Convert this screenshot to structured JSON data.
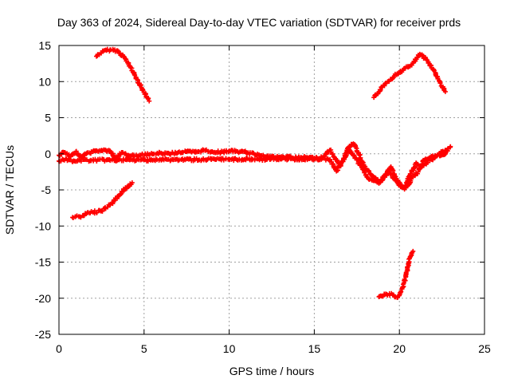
{
  "chart_data": {
    "type": "scatter",
    "title": "Day 363 of 2024, Sidereal Day-to-day VTEC variation (SDTVAR) for receiver prds",
    "xlabel": "GPS time / hours",
    "ylabel": "SDTVAR / TECUs",
    "xlim": [
      0,
      25
    ],
    "ylim": [
      -25,
      15
    ],
    "xticks": [
      0,
      5,
      10,
      15,
      20,
      25
    ],
    "yticks": [
      -25,
      -20,
      -15,
      -10,
      -5,
      0,
      5,
      10,
      15
    ],
    "grid": true,
    "marker": "plus",
    "color": "#ff0000",
    "series": [
      {
        "name": "upper-left arc",
        "points": [
          [
            2.2,
            13.5
          ],
          [
            2.6,
            14.2
          ],
          [
            3.0,
            14.4
          ],
          [
            3.4,
            14.3
          ],
          [
            3.8,
            13.5
          ],
          [
            4.2,
            12.0
          ],
          [
            4.6,
            10.3
          ],
          [
            5.0,
            8.5
          ],
          [
            5.3,
            7.3
          ]
        ]
      },
      {
        "name": "upper-right arc",
        "points": [
          [
            18.5,
            7.8
          ],
          [
            18.8,
            8.6
          ],
          [
            19.2,
            9.8
          ],
          [
            19.7,
            10.8
          ],
          [
            20.2,
            11.6
          ],
          [
            20.7,
            12.3
          ],
          [
            21.0,
            13.1
          ],
          [
            21.2,
            13.8
          ],
          [
            21.6,
            13.0
          ],
          [
            22.0,
            11.7
          ],
          [
            22.4,
            9.8
          ],
          [
            22.7,
            8.6
          ]
        ]
      },
      {
        "name": "central band",
        "points": [
          [
            0.0,
            -0.2
          ],
          [
            0.3,
            0.2
          ],
          [
            0.7,
            -0.4
          ],
          [
            1.0,
            0.3
          ],
          [
            1.3,
            -0.5
          ],
          [
            1.6,
            0.0
          ],
          [
            2.0,
            0.3
          ],
          [
            2.5,
            0.5
          ],
          [
            3.0,
            0.4
          ],
          [
            3.3,
            -0.6
          ],
          [
            3.7,
            0.2
          ],
          [
            4.2,
            -0.3
          ],
          [
            4.8,
            -0.2
          ],
          [
            5.3,
            -0.1
          ],
          [
            6.0,
            0.1
          ],
          [
            6.5,
            0.0
          ],
          [
            7.0,
            0.2
          ],
          [
            7.5,
            0.3
          ],
          [
            8.0,
            0.2
          ],
          [
            8.5,
            0.5
          ],
          [
            9.0,
            0.3
          ],
          [
            9.5,
            0.2
          ],
          [
            10.0,
            0.4
          ],
          [
            10.5,
            0.3
          ],
          [
            11.0,
            0.2
          ],
          [
            11.5,
            -0.1
          ],
          [
            12.0,
            -0.2
          ],
          [
            12.5,
            -0.4
          ],
          [
            13.0,
            -0.5
          ],
          [
            13.5,
            -0.4
          ],
          [
            14.0,
            -0.6
          ],
          [
            14.5,
            -0.5
          ],
          [
            15.0,
            -0.6
          ],
          [
            15.5,
            -0.5
          ],
          [
            15.9,
            0.5
          ],
          [
            16.2,
            -0.5
          ],
          [
            16.5,
            -1.7
          ],
          [
            16.8,
            -0.5
          ],
          [
            17.0,
            0.9
          ],
          [
            17.3,
            1.4
          ],
          [
            17.6,
            0.0
          ],
          [
            18.0,
            -2.0
          ],
          [
            18.4,
            -3.0
          ],
          [
            18.8,
            -4.1
          ],
          [
            19.2,
            -2.8
          ],
          [
            19.5,
            -1.8
          ],
          [
            19.8,
            -3.5
          ],
          [
            20.2,
            -4.6
          ],
          [
            20.5,
            -4.4
          ],
          [
            20.8,
            -3.2
          ],
          [
            21.1,
            -2.5
          ],
          [
            21.4,
            -0.9
          ],
          [
            21.8,
            -0.5
          ],
          [
            22.2,
            -0.3
          ],
          [
            22.6,
            -0.1
          ],
          [
            23.0,
            1.0
          ]
        ]
      },
      {
        "name": "lower band",
        "points": [
          [
            0.0,
            -1.0
          ],
          [
            0.4,
            -0.7
          ],
          [
            0.8,
            -1.1
          ],
          [
            1.2,
            -0.9
          ],
          [
            15.8,
            -0.7
          ],
          [
            16.1,
            -1.4
          ],
          [
            16.3,
            -2.4
          ],
          [
            16.6,
            -1.2
          ],
          [
            17.0,
            0.6
          ],
          [
            17.5,
            -0.8
          ],
          [
            18.2,
            -3.5
          ],
          [
            18.9,
            -3.8
          ],
          [
            19.4,
            -2.6
          ],
          [
            19.9,
            -4.0
          ],
          [
            20.3,
            -4.9
          ],
          [
            20.6,
            -3.0
          ],
          [
            21.0,
            -1.3
          ],
          [
            21.2,
            -2.0
          ],
          [
            21.6,
            -1.2
          ],
          [
            22.0,
            -0.6
          ],
          [
            22.5,
            0.3
          ],
          [
            22.8,
            0.4
          ]
        ]
      },
      {
        "name": "left descending",
        "points": [
          [
            0.8,
            -8.8
          ],
          [
            1.2,
            -8.7
          ],
          [
            1.6,
            -8.3
          ],
          [
            2.0,
            -8.1
          ],
          [
            2.5,
            -7.9
          ],
          [
            3.0,
            -7.1
          ],
          [
            3.5,
            -5.8
          ],
          [
            4.0,
            -4.6
          ],
          [
            4.3,
            -4.0
          ]
        ]
      },
      {
        "name": "lower-right hook",
        "points": [
          [
            18.8,
            -19.8
          ],
          [
            19.2,
            -19.4
          ],
          [
            19.6,
            -19.5
          ],
          [
            19.9,
            -19.9
          ],
          [
            20.2,
            -18.5
          ],
          [
            20.4,
            -16.7
          ],
          [
            20.6,
            -14.5
          ],
          [
            20.8,
            -13.5
          ]
        ]
      }
    ]
  }
}
